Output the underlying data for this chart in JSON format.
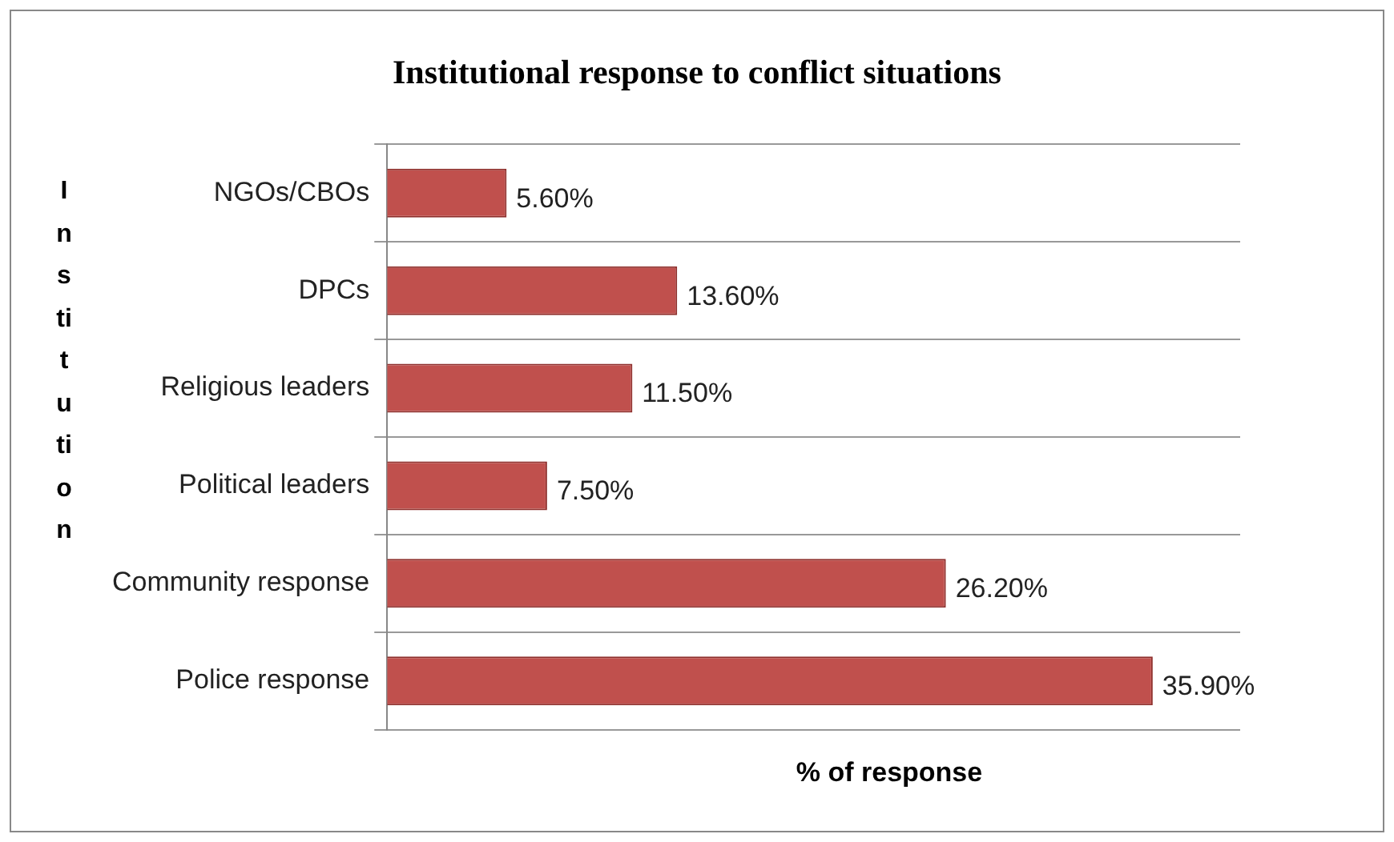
{
  "chart_data": {
    "type": "bar",
    "orientation": "horizontal",
    "title": "Institutional response to conflict situations",
    "xlabel": "% of response",
    "ylabel": "Institution",
    "categories": [
      "NGOs/CBOs",
      "DPCs",
      "Religious leaders",
      "Political leaders",
      "Community response",
      "Police response"
    ],
    "values": [
      5.6,
      13.6,
      11.5,
      7.5,
      26.2,
      35.9
    ],
    "value_labels": [
      "5.60%",
      "13.60%",
      "11.50%",
      "7.50%",
      "26.20%",
      "35.90%"
    ],
    "color": "#c0504d",
    "xlim": [
      0,
      40
    ],
    "tick_labels": "y",
    "grid": "y",
    "legend": false
  }
}
